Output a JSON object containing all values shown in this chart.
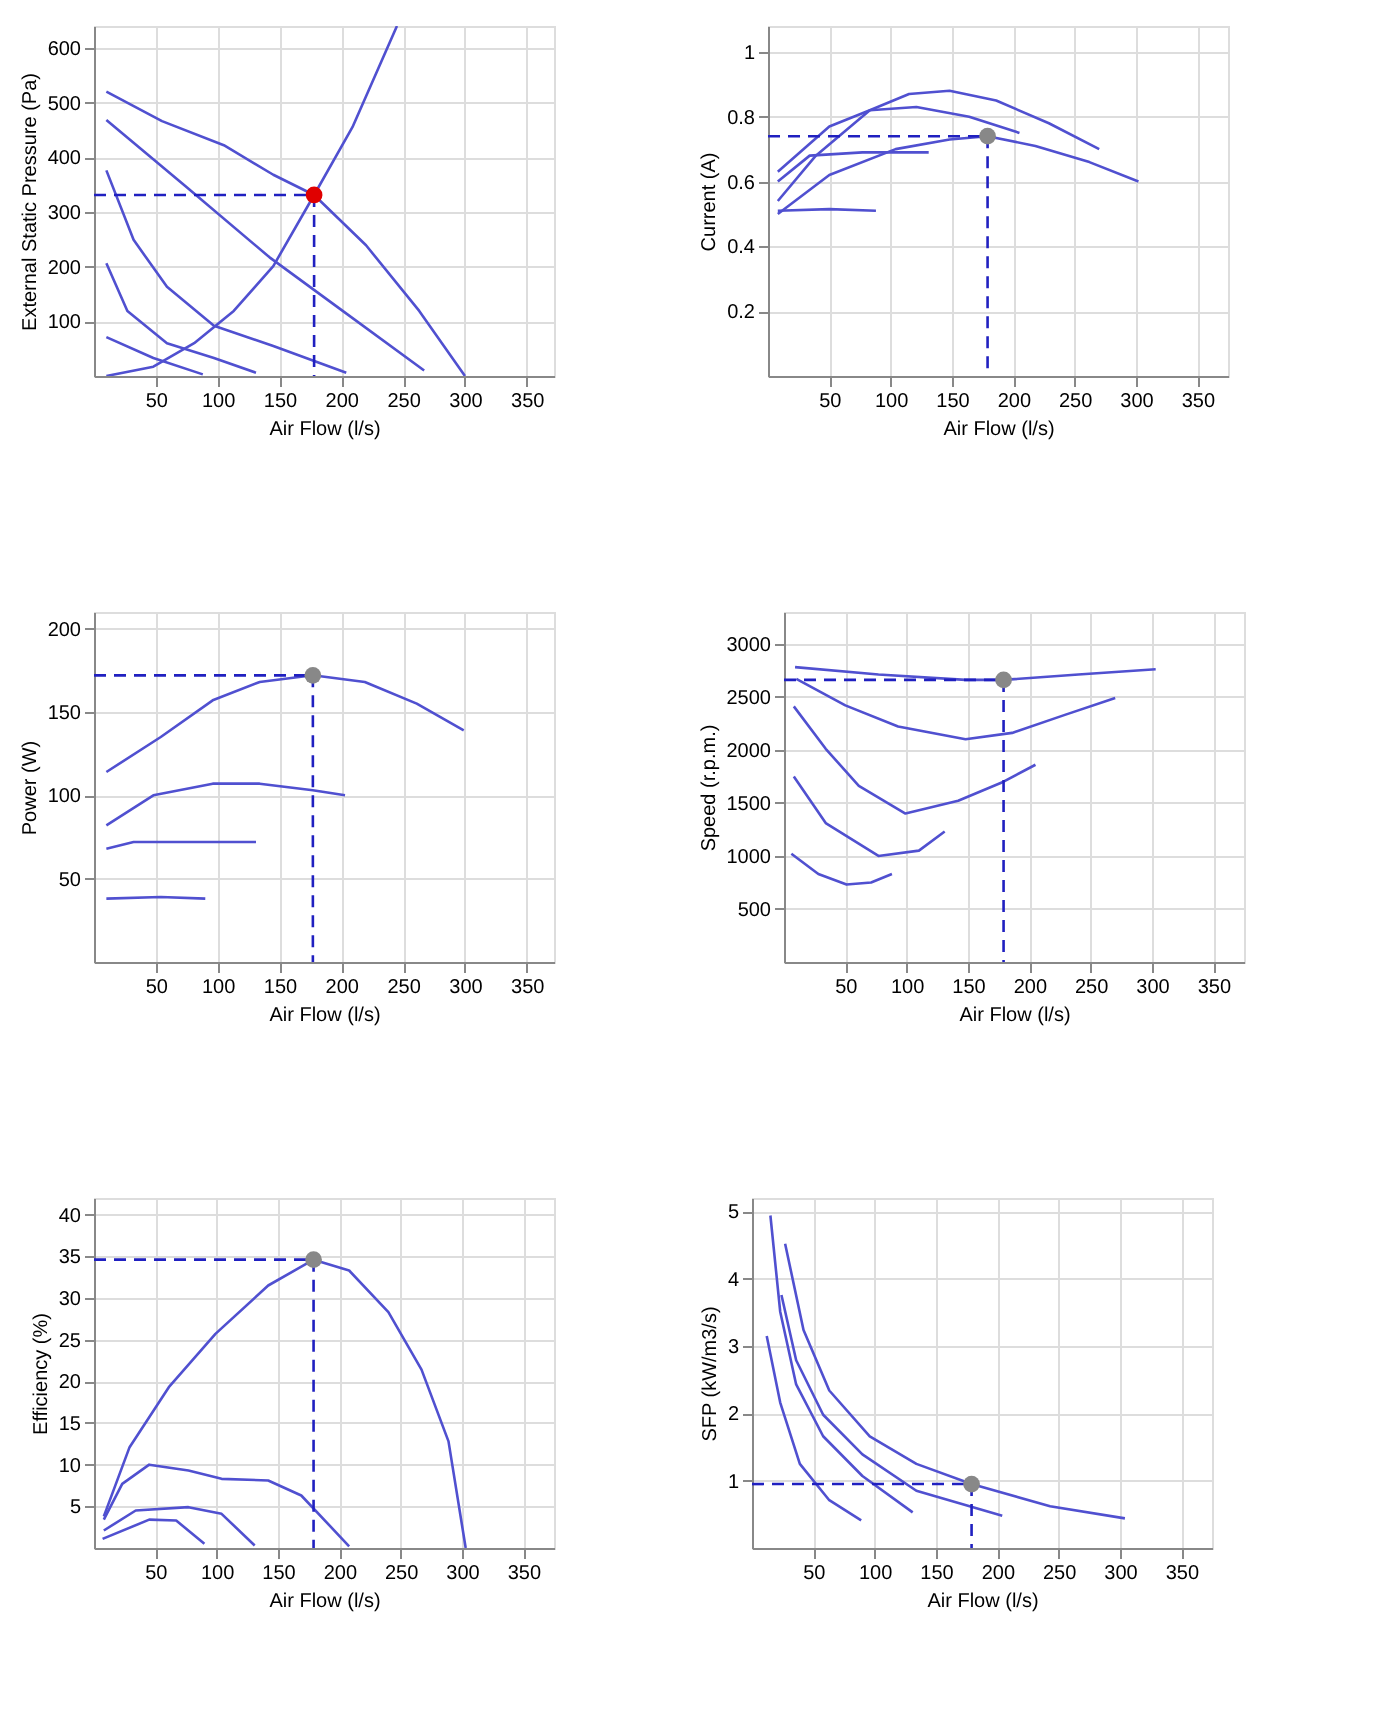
{
  "chart_data": [
    {
      "type": "line",
      "xlabel": "Air Flow (l/s)",
      "ylabel": "External Static Pressure (Pa)",
      "xlim": [
        0,
        372
      ],
      "xticks": [
        50,
        100,
        150,
        200,
        250,
        300,
        350
      ],
      "ylim": [
        0,
        640
      ],
      "yticks": [
        100,
        200,
        300,
        400,
        500,
        600
      ],
      "grid": true,
      "series": [
        {
          "color": "#5050d0",
          "x": [
            10,
            55,
            105,
            145,
            178,
            220,
            263,
            300
          ],
          "values": [
            520,
            466,
            422,
            368,
            331,
            239,
            119,
            0
          ]
        },
        {
          "color": "#5050d0",
          "x": [
            10,
            75,
            142,
            200,
            267
          ],
          "values": [
            468,
            345,
            217,
            121,
            10
          ]
        },
        {
          "color": "#5050d0",
          "x": [
            10,
            32,
            59,
            97,
            145,
            204
          ],
          "values": [
            376,
            249,
            163,
            92,
            55,
            6
          ]
        },
        {
          "color": "#5050d0",
          "x": [
            10,
            27,
            59,
            97,
            131
          ],
          "values": [
            206,
            119,
            60,
            33,
            6
          ]
        },
        {
          "color": "#5050d0",
          "x": [
            10,
            48,
            88
          ],
          "values": [
            71,
            33,
            3
          ]
        },
        {
          "color": "#5050d0",
          "x": [
            10,
            48,
            81,
            113,
            145,
            178,
            209,
            245
          ],
          "values": [
            0,
            17,
            60,
            119,
            201,
            331,
            455,
            640
          ]
        },
        {
          "type": "line",
          "line_style": "dashed",
          "color": "#2020c0",
          "x": [
            0,
            178
          ],
          "values": [
            331,
            331
          ]
        },
        {
          "type": "line",
          "line_style": "dashed",
          "color": "#2020c0",
          "x": [
            178,
            178
          ],
          "values": [
            331,
            0
          ]
        },
        {
          "type": "scatter",
          "marker": "circle",
          "color": "#e00000",
          "x": [
            178
          ],
          "values": [
            331
          ]
        }
      ]
    },
    {
      "type": "line",
      "xlabel": "Air Flow (l/s)",
      "ylabel": "Current (A)",
      "xlim": [
        0,
        375
      ],
      "xticks": [
        50,
        100,
        150,
        200,
        250,
        300,
        350
      ],
      "ylim": [
        0,
        1.08
      ],
      "yticks": [
        0.2,
        0.4,
        0.6,
        0.8,
        1
      ],
      "grid": true,
      "series": [
        {
          "color": "#5050d0",
          "x": [
            8,
            50,
            104,
            148,
            179,
            218,
            262,
            302
          ],
          "values": [
            0.5,
            0.62,
            0.7,
            0.73,
            0.74,
            0.71,
            0.66,
            0.6
          ]
        },
        {
          "color": "#5050d0",
          "x": [
            8,
            39,
            83,
            115,
            148,
            186,
            229,
            270
          ],
          "values": [
            0.54,
            0.68,
            0.82,
            0.87,
            0.88,
            0.85,
            0.78,
            0.7
          ]
        },
        {
          "color": "#5050d0",
          "x": [
            8,
            50,
            83,
            121,
            164,
            205
          ],
          "values": [
            0.63,
            0.77,
            0.82,
            0.83,
            0.8,
            0.75
          ]
        },
        {
          "color": "#5050d0",
          "x": [
            8,
            34,
            77,
            131
          ],
          "values": [
            0.6,
            0.68,
            0.69,
            0.69
          ]
        },
        {
          "color": "#5050d0",
          "x": [
            8,
            50,
            88
          ],
          "values": [
            0.51,
            0.515,
            0.51
          ]
        },
        {
          "type": "line",
          "line_style": "dashed",
          "color": "#2020c0",
          "x": [
            0,
            179
          ],
          "values": [
            0.74,
            0.74
          ]
        },
        {
          "type": "line",
          "line_style": "dashed",
          "color": "#2020c0",
          "x": [
            179,
            179
          ],
          "values": [
            0.74,
            0
          ]
        },
        {
          "type": "scatter",
          "marker": "circle",
          "color": "#888888",
          "x": [
            179
          ],
          "values": [
            0.74
          ]
        }
      ]
    },
    {
      "type": "line",
      "xlabel": "Air Flow (l/s)",
      "ylabel": "Power (W)",
      "xlim": [
        0,
        372
      ],
      "xticks": [
        50,
        100,
        150,
        200,
        250,
        300,
        350
      ],
      "ylim": [
        0,
        210
      ],
      "yticks": [
        50,
        100,
        150,
        200
      ],
      "grid": true,
      "series": [
        {
          "color": "#5050d0",
          "x": [
            10,
            54,
            96,
            134,
            177,
            219,
            261,
            299
          ],
          "values": [
            114,
            135,
            157,
            168,
            172,
            168,
            155,
            139
          ]
        },
        {
          "color": "#5050d0",
          "x": [
            10,
            48,
            96,
            134,
            177,
            203
          ],
          "values": [
            82,
            100,
            107,
            107,
            103,
            100
          ]
        },
        {
          "color": "#5050d0",
          "x": [
            10,
            32,
            80,
            131
          ],
          "values": [
            68,
            72,
            72,
            72
          ]
        },
        {
          "color": "#5050d0",
          "x": [
            10,
            54,
            90
          ],
          "values": [
            38,
            39,
            38
          ]
        },
        {
          "type": "line",
          "line_style": "dashed",
          "color": "#2020c0",
          "x": [
            0,
            177
          ],
          "values": [
            172,
            172
          ]
        },
        {
          "type": "line",
          "line_style": "dashed",
          "color": "#2020c0",
          "x": [
            177,
            177
          ],
          "values": [
            172,
            0
          ]
        },
        {
          "type": "scatter",
          "marker": "circle",
          "color": "#888888",
          "x": [
            177
          ],
          "values": [
            172
          ]
        }
      ]
    },
    {
      "type": "line",
      "xlabel": "Air Flow (l/s)",
      "ylabel": "Speed (r.p.m.)",
      "xlim": [
        0,
        375
      ],
      "xticks": [
        50,
        100,
        150,
        200,
        250,
        300,
        350
      ],
      "ylim": [
        0,
        3300
      ],
      "yticks": [
        500,
        1000,
        1500,
        2000,
        2500,
        3000
      ],
      "grid": true,
      "series": [
        {
          "color": "#5050d0",
          "x": [
            9,
            77,
            148,
            179,
            240,
            303
          ],
          "values": [
            2780,
            2710,
            2660,
            2660,
            2710,
            2760
          ]
        },
        {
          "color": "#5050d0",
          "x": [
            10,
            50,
            93,
            148,
            186,
            229,
            270
          ],
          "values": [
            2670,
            2420,
            2220,
            2100,
            2160,
            2330,
            2490
          ]
        },
        {
          "color": "#5050d0",
          "x": [
            8,
            34,
            61,
            99,
            142,
            179,
            205
          ],
          "values": [
            2410,
            2010,
            1660,
            1400,
            1520,
            1700,
            1860
          ]
        },
        {
          "color": "#5050d0",
          "x": [
            8,
            34,
            77,
            110,
            131
          ],
          "values": [
            1750,
            1310,
            1000,
            1050,
            1230
          ]
        },
        {
          "color": "#5050d0",
          "x": [
            6,
            28,
            51,
            71,
            88
          ],
          "values": [
            1020,
            830,
            730,
            750,
            830
          ]
        },
        {
          "type": "line",
          "line_style": "dashed",
          "color": "#2020c0",
          "x": [
            0,
            179
          ],
          "values": [
            2660,
            2660
          ]
        },
        {
          "type": "line",
          "line_style": "dashed",
          "color": "#2020c0",
          "x": [
            179,
            179
          ],
          "values": [
            2660,
            0
          ]
        },
        {
          "type": "scatter",
          "marker": "circle",
          "color": "#888888",
          "x": [
            179
          ],
          "values": [
            2660
          ]
        }
      ]
    },
    {
      "type": "line",
      "xlabel": "Air Flow (l/s)",
      "ylabel": "Efficiency (%)",
      "xlim": [
        0,
        375
      ],
      "xticks": [
        50,
        100,
        150,
        200,
        250,
        300,
        350
      ],
      "ylim": [
        0,
        42
      ],
      "yticks": [
        5,
        10,
        15,
        20,
        25,
        30,
        35,
        40
      ],
      "grid": true,
      "series": [
        {
          "color": "#5050d0",
          "x": [
            8,
            29,
            61,
            99,
            142,
            179,
            208,
            240,
            267,
            289,
            303
          ],
          "values": [
            3.8,
            12.1,
            19.3,
            25.7,
            31.5,
            34.6,
            33.3,
            28.3,
            21.4,
            12.8,
            0
          ]
        },
        {
          "color": "#5050d0",
          "x": [
            8,
            23,
            45,
            77,
            104,
            142,
            169,
            208
          ],
          "values": [
            3.4,
            7.7,
            10,
            9.3,
            8.3,
            8.1,
            6.3,
            0.2
          ]
        },
        {
          "color": "#5050d0",
          "x": [
            8,
            34,
            77,
            104,
            131
          ],
          "values": [
            2.1,
            4.5,
            4.9,
            4.1,
            0.3
          ]
        },
        {
          "color": "#5050d0",
          "x": [
            7,
            45,
            67,
            90
          ],
          "values": [
            1.1,
            3.4,
            3.3,
            0.5
          ]
        },
        {
          "type": "line",
          "line_style": "dashed",
          "color": "#2020c0",
          "x": [
            0,
            179
          ],
          "values": [
            34.6,
            34.6
          ]
        },
        {
          "type": "line",
          "line_style": "dashed",
          "color": "#2020c0",
          "x": [
            179,
            179
          ],
          "values": [
            34.6,
            0
          ]
        },
        {
          "type": "scatter",
          "marker": "circle",
          "color": "#888888",
          "x": [
            179
          ],
          "values": [
            34.6
          ]
        }
      ]
    },
    {
      "type": "line",
      "xlabel": "Air Flow (l/s)",
      "ylabel": "SFP (kW/m3/s)",
      "xlim": [
        0,
        375
      ],
      "xticks": [
        50,
        100,
        150,
        200,
        250,
        300,
        350
      ],
      "ylim": [
        0,
        5.2
      ],
      "yticks": [
        1,
        2,
        3,
        4,
        5
      ],
      "grid": true,
      "series": [
        {
          "color": "#5050d0",
          "x": [
            27,
            42,
            63,
            96,
            134,
            179,
            243,
            304
          ],
          "values": [
            4.52,
            3.24,
            2.34,
            1.66,
            1.25,
            0.95,
            0.62,
            0.44
          ]
        },
        {
          "color": "#5050d0",
          "x": [
            24,
            36,
            58,
            90,
            134,
            204
          ],
          "values": [
            3.76,
            2.79,
            1.98,
            1.39,
            0.85,
            0.48
          ]
        },
        {
          "color": "#5050d0",
          "x": [
            15,
            23,
            36,
            58,
            90,
            131
          ],
          "values": [
            4.94,
            3.51,
            2.43,
            1.66,
            1.07,
            0.53
          ]
        },
        {
          "color": "#5050d0",
          "x": [
            12,
            23,
            39,
            63,
            89
          ],
          "values": [
            3.15,
            2.16,
            1.25,
            0.71,
            0.41
          ]
        },
        {
          "type": "line",
          "line_style": "dashed",
          "color": "#2020c0",
          "x": [
            0,
            179
          ],
          "values": [
            0.95,
            0.95
          ]
        },
        {
          "type": "line",
          "line_style": "dashed",
          "color": "#2020c0",
          "x": [
            179,
            179
          ],
          "values": [
            0.95,
            0
          ]
        },
        {
          "type": "scatter",
          "marker": "circle",
          "color": "#888888",
          "x": [
            179
          ],
          "values": [
            0.95
          ]
        }
      ]
    }
  ]
}
